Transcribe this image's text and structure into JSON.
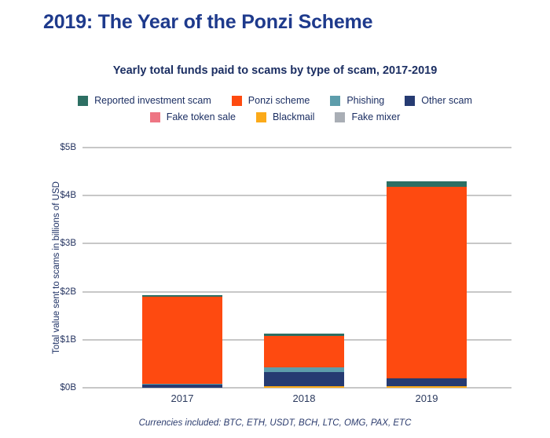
{
  "page": {
    "title": "2019: The Year of the Ponzi Scheme",
    "footer": "Currencies included: BTC, ETH, USDT, BCH, LTC, OMG, PAX, ETC"
  },
  "colors": {
    "title_navy": "#1e3a8c",
    "text_navy": "#1c2f63",
    "gridline_gray": "#c7c7c7"
  },
  "legend": {
    "rows": [
      [
        0,
        1,
        2,
        3
      ],
      [
        4,
        5,
        6
      ]
    ],
    "items": [
      {
        "key": "reported-investment-scam",
        "label": "Reported investment scam",
        "color": "#2d6f63"
      },
      {
        "key": "ponzi-scheme",
        "label": "Ponzi scheme",
        "color": "#fe4a10"
      },
      {
        "key": "phishing",
        "label": "Phishing",
        "color": "#5d9dab"
      },
      {
        "key": "other-scam",
        "label": "Other scam",
        "color": "#263b72"
      },
      {
        "key": "fake-token-sale",
        "label": "Fake token sale",
        "color": "#ee7583"
      },
      {
        "key": "blackmail",
        "label": "Blackmail",
        "color": "#fbaa19"
      },
      {
        "key": "fake-mixer",
        "label": "Fake mixer",
        "color": "#a9aeb5"
      }
    ]
  },
  "chart_data": {
    "type": "bar",
    "stacked": true,
    "title": "Yearly total funds paid to scams by type of scam, 2017-2019",
    "ylabel": "Total value sent to scams in billions of USD",
    "categories": [
      "2017",
      "2018",
      "2019"
    ],
    "series": [
      {
        "name": "Reported investment scam",
        "color": "#2d6f63",
        "values": [
          0.03,
          0.04,
          0.12
        ]
      },
      {
        "name": "Ponzi scheme",
        "color": "#fe4a10",
        "values": [
          1.81,
          0.66,
          3.98
        ]
      },
      {
        "name": "Phishing",
        "color": "#5d9dab",
        "values": [
          0.02,
          0.09,
          0
        ]
      },
      {
        "name": "Other scam",
        "color": "#263b72",
        "values": [
          0.07,
          0.3,
          0.17
        ]
      },
      {
        "name": "Fake token sale",
        "color": "#ee7583",
        "values": [
          0,
          0,
          0
        ]
      },
      {
        "name": "Blackmail",
        "color": "#fbaa19",
        "values": [
          0,
          0.03,
          0.03
        ]
      },
      {
        "name": "Fake mixer",
        "color": "#a9aeb5",
        "values": [
          0,
          0,
          0
        ]
      }
    ],
    "totals": [
      1.93,
      1.12,
      4.3
    ],
    "stack_order_bottom_to_top": [
      "Fake mixer",
      "Blackmail",
      "Fake token sale",
      "Other scam",
      "Phishing",
      "Ponzi scheme",
      "Reported investment scam"
    ],
    "yticks": [
      "$0B",
      "$1B",
      "$2B",
      "$3B",
      "$4B",
      "$5B"
    ],
    "ylim": [
      0,
      5
    ],
    "grid": true,
    "legend_position": "top"
  }
}
